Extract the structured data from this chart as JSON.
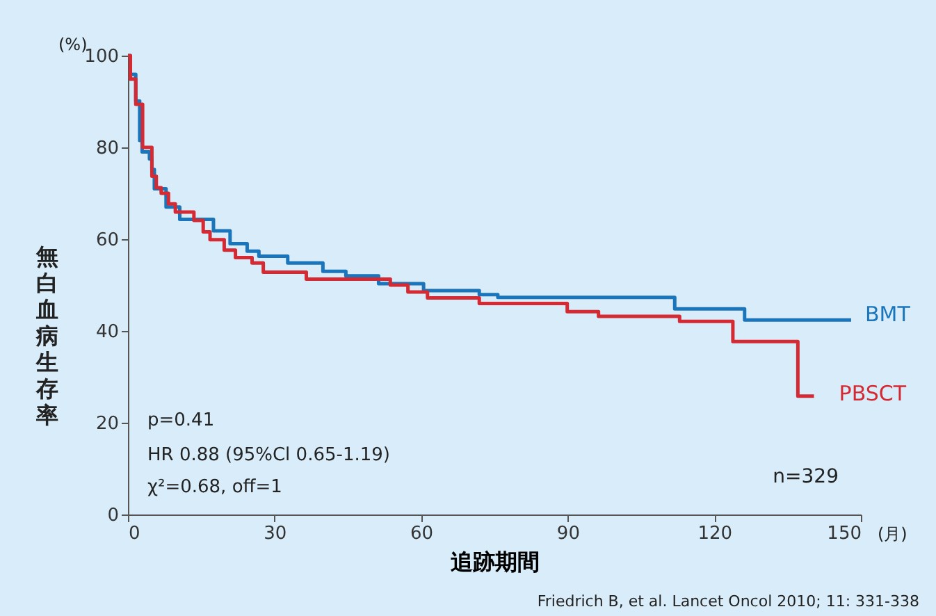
{
  "chart_data": {
    "type": "step",
    "xlabel": "追跡期間",
    "ylabel": "無白血病生存率",
    "xlim": [
      0,
      150
    ],
    "ylim": [
      0,
      100
    ],
    "xticks": [
      0,
      30,
      60,
      90,
      120,
      150
    ],
    "yticks": [
      0,
      20,
      40,
      60,
      80,
      100
    ],
    "grid": false,
    "legend": false,
    "series": [
      {
        "name": "BMT",
        "color": "#1a75bb",
        "x": [
          0,
          0.5,
          1.6,
          2.4,
          2.9,
          4.4,
          4.9,
          5.4,
          7.8,
          10.6,
          17.5,
          20.9,
          24.4,
          26.8,
          32.7,
          39.9,
          44.6,
          51.3,
          60.5,
          71.9,
          75.7,
          111.9,
          126.2,
          148
        ],
        "values": [
          100,
          95.9,
          90.1,
          81.5,
          79,
          77.5,
          75.2,
          71,
          67,
          64.3,
          61.8,
          59,
          57.4,
          56.3,
          54.8,
          53,
          52,
          50.3,
          48.8,
          47.9,
          47.3,
          44.8,
          42.4,
          42.4
        ]
      },
      {
        "name": "PBSCT",
        "color": "#d42a33",
        "x": [
          0,
          0.5,
          1.6,
          3.0,
          4.9,
          5.8,
          6.8,
          8.3,
          9.7,
          13.5,
          15.4,
          16.8,
          19.7,
          22,
          25.4,
          27.7,
          36.5,
          53.7,
          57.3,
          61.3,
          71.9,
          89.9,
          96.3,
          112.9,
          123.8,
          137.1,
          140.4
        ],
        "values": [
          100,
          94.9,
          89.4,
          80,
          73.7,
          71.2,
          70,
          67.7,
          65.9,
          64.1,
          61.6,
          59.9,
          57.6,
          56,
          54.8,
          52.8,
          51.3,
          50,
          48.5,
          47.2,
          46,
          44.2,
          43.2,
          42.1,
          37.7,
          25.8,
          25.8
        ]
      }
    ],
    "annotations": [
      "(%)",
      "(月)",
      "p=0.41",
      "HR 0.88 (95%Cl 0.65-1.19)",
      "χ²=0.68, off=1",
      "n=329",
      "Friedrich B, et al. Lancet Oncol 2010; 11: 331-338"
    ]
  }
}
